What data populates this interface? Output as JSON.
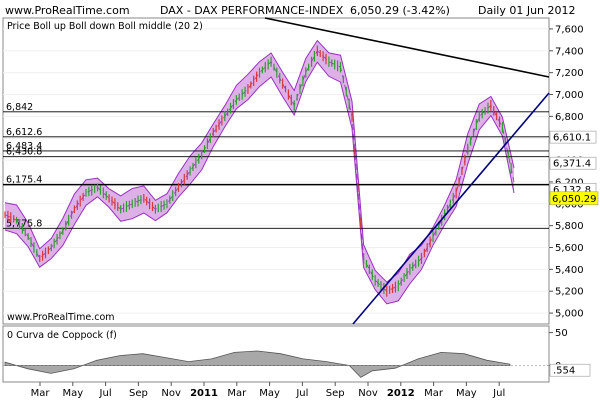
{
  "header": {
    "site": "www.ProRealTime.com",
    "instrument": "DAX - DAX PERFORMANCE-INDEX",
    "last_quote": "6,050.29 (-3.42%)",
    "period_date": "Daily  01 Jun 2012"
  },
  "colors": {
    "band_fill": "#d9a8e6",
    "band_stroke": "#9b30c0",
    "up_candle": "#2e9e2e",
    "down_candle": "#d83838",
    "trendline": "#000080",
    "last_price_bg": "#ffff00",
    "oscillator_fill": "#a8a8a8"
  },
  "chart_data": [
    {
      "type": "line",
      "title": "DAX - DAX PERFORMANCE-INDEX",
      "subtitle": "Price Boll up Boll down Boll middle (20 2)",
      "ylabel": "",
      "xlabel": "",
      "y_ticks": [
        "7,600",
        "7,400",
        "7,200",
        "7,000",
        "6,800",
        "6,600",
        "6,400",
        "6,200",
        "6,000",
        "5,800",
        "5,600",
        "5,400",
        "5,200",
        "5,000"
      ],
      "ylim": [
        4900,
        7700
      ],
      "x_ticks": [
        "Mar",
        "May",
        "Jul",
        "Sep",
        "Nov",
        "2011",
        "Mar",
        "May",
        "Jul",
        "Sep",
        "Nov",
        "2012",
        "Mar",
        "May",
        "Jul"
      ],
      "horizontal_levels": [
        "6,842",
        "6,612.6",
        "6,483.4",
        "6,430.8",
        "6,175.4",
        "5,775.8"
      ],
      "level_values": [
        6842,
        6612.6,
        6483.4,
        6430.8,
        6175.4,
        5775.8
      ],
      "price_labels": [
        "6,610.1",
        "6,371.4",
        "6,132.8"
      ],
      "price_label_values": [
        6610.1,
        6371.4,
        6132.8
      ],
      "last_price": "6,050.29",
      "last_price_value": 6050.29,
      "x": [
        0,
        2,
        4,
        6,
        8,
        10,
        12,
        14,
        16,
        18,
        20,
        22,
        24,
        26,
        28,
        30,
        32,
        34,
        36,
        38,
        40,
        42,
        44,
        46,
        48,
        50,
        52,
        54,
        56,
        58,
        60,
        62,
        64,
        66,
        68,
        70,
        72,
        74,
        76,
        78,
        80,
        82,
        84,
        86,
        88
      ],
      "series": [
        {
          "values": [
            5900,
            5850,
            5700,
            5500,
            5600,
            5750,
            5950,
            6100,
            6150,
            6050,
            5950,
            6000,
            6050,
            5950,
            6000,
            6150,
            6300,
            6450,
            6650,
            6800,
            6950,
            7050,
            7200,
            7300,
            7100,
            6900,
            7200,
            7400,
            7300,
            7250,
            6800,
            5500,
            5300,
            5200,
            5250,
            5400,
            5500,
            5700,
            5900,
            6100,
            6500,
            6800,
            6900,
            6700,
            6200
          ]
        }
      ],
      "band_width": 220
    },
    {
      "type": "area",
      "title": "0 Curva de Coppock (f)",
      "y_ticks": [
        "50",
        "0"
      ],
      "ylim": [
        -25,
        60
      ],
      "last_value": ".554",
      "x": [
        0,
        4,
        8,
        12,
        16,
        20,
        24,
        28,
        32,
        36,
        40,
        44,
        48,
        52,
        56,
        60,
        62,
        64,
        68,
        72,
        76,
        80,
        84,
        88
      ],
      "series": [
        {
          "values": [
            5,
            -5,
            -12,
            -5,
            8,
            15,
            18,
            12,
            6,
            10,
            20,
            22,
            18,
            10,
            6,
            0,
            -18,
            -8,
            -4,
            10,
            20,
            18,
            8,
            2
          ]
        }
      ]
    }
  ]
}
